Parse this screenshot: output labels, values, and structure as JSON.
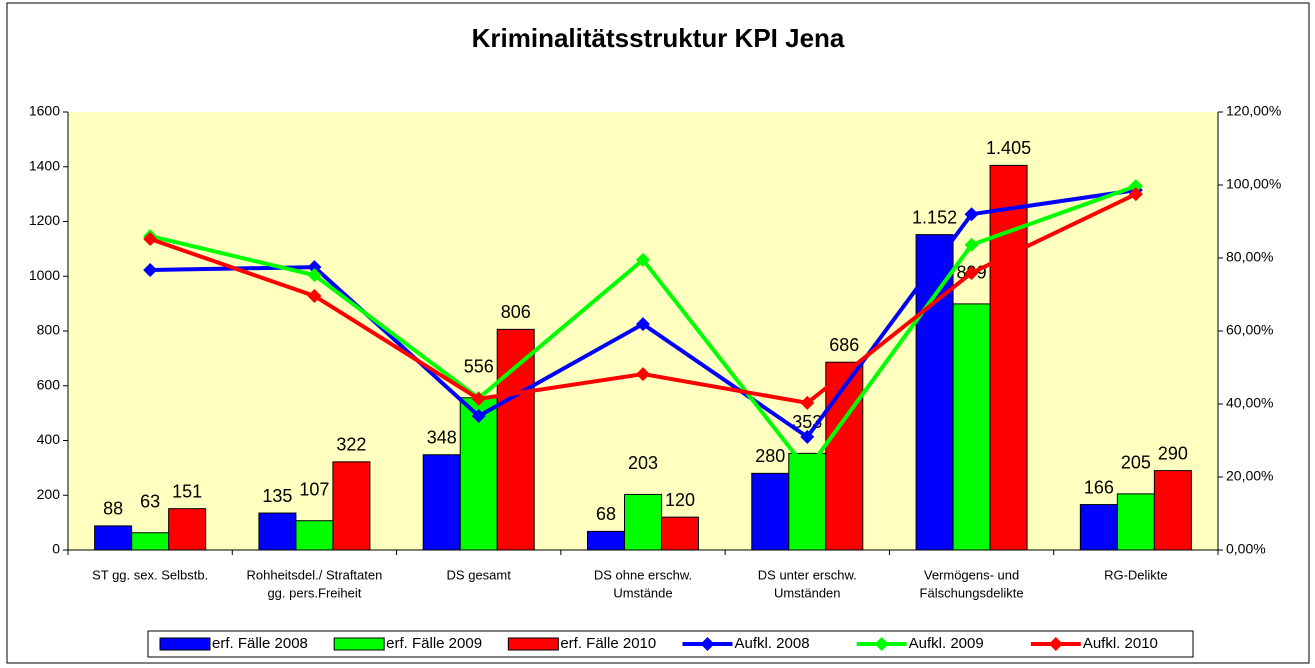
{
  "chart_data": {
    "type": "bar",
    "title": "Kriminalitätsstruktur KPI Jena",
    "categories": [
      [
        "ST gg. sex. Selbstb."
      ],
      [
        "Rohheitsdel./ Straftaten",
        "gg. pers.Freiheit"
      ],
      [
        "DS gesamt"
      ],
      [
        "DS ohne erschw.",
        "Umstände"
      ],
      [
        "DS unter erschw.",
        "Umständen"
      ],
      [
        "Vermögens- und",
        "Fälschungsdelikte"
      ],
      [
        "RG-Delikte"
      ]
    ],
    "series": [
      {
        "name": "erf. Fälle 2008",
        "type": "bar",
        "color": "#0000ff",
        "values": [
          88,
          135,
          348,
          68,
          280,
          1152,
          166
        ],
        "value_labels": [
          "88",
          "135",
          "348",
          "68",
          "280",
          "1.152",
          "166"
        ]
      },
      {
        "name": "erf. Fälle 2009",
        "type": "bar",
        "color": "#00ff00",
        "values": [
          63,
          107,
          556,
          203,
          353,
          899,
          205
        ],
        "value_labels": [
          "63",
          "107",
          "556",
          "203",
          "353",
          "899",
          "205"
        ]
      },
      {
        "name": "erf. Fälle 2010",
        "type": "bar",
        "color": "#ff0000",
        "values": [
          151,
          322,
          806,
          120,
          686,
          1405,
          290
        ],
        "value_labels": [
          "151",
          "322",
          "806",
          "120",
          "686",
          "1.405",
          "290"
        ]
      },
      {
        "name": "Aufkl. 2008",
        "type": "line",
        "axis": "y2",
        "color": "#0000ff",
        "values": [
          76.7,
          77.5,
          36.7,
          61.9,
          31.0,
          92.0,
          98.6
        ]
      },
      {
        "name": "Aufkl. 2009",
        "type": "line",
        "axis": "y2",
        "color": "#00ff00",
        "values": [
          86.0,
          75.3,
          41.6,
          79.5,
          21.9,
          83.6,
          99.7
        ]
      },
      {
        "name": "Aufkl. 2010",
        "type": "line",
        "axis": "y2",
        "color": "#ff0000",
        "values": [
          85.2,
          69.6,
          41.4,
          48.2,
          40.3,
          75.9,
          97.5
        ]
      }
    ],
    "ylim": [
      0,
      1600
    ],
    "yticks": [
      0,
      200,
      400,
      600,
      800,
      1000,
      1200,
      1400,
      1600
    ],
    "y2lim": [
      0,
      120
    ],
    "y2ticks": [
      {
        "value": 0,
        "label": "0,00%"
      },
      {
        "value": 20,
        "label": "20,00%"
      },
      {
        "value": 40,
        "label": "40,00%"
      },
      {
        "value": 60,
        "label": "60,00%"
      },
      {
        "value": 80,
        "label": "80,00%"
      },
      {
        "value": 100,
        "label": "100,00%"
      },
      {
        "value": 120,
        "label": "120,00%"
      }
    ],
    "legend": "bottom"
  }
}
